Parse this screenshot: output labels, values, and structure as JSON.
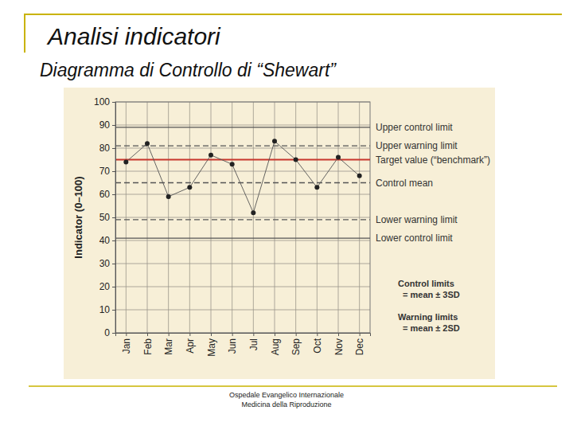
{
  "chart_data": {
    "type": "line",
    "title": "Analisi indicatori",
    "subtitle": "Diagramma di Controllo di “Shewart”",
    "y_label": "Indicator (0–100)",
    "categories": [
      "Jan",
      "Feb",
      "Mar",
      "Apr",
      "May",
      "Jun",
      "Jul",
      "Aug",
      "Sep",
      "Oct",
      "Nov",
      "Dec"
    ],
    "values": [
      74,
      82,
      59,
      63,
      77,
      73,
      52,
      83,
      75,
      63,
      76,
      68
    ],
    "color": "#555555",
    "marker": "circle",
    "ylim": [
      0,
      100
    ],
    "yticks": [
      0,
      10,
      20,
      30,
      40,
      50,
      60,
      70,
      80,
      90,
      100
    ],
    "grid": true,
    "reference_lines": [
      {
        "label": "Upper control limit",
        "value": 89,
        "color": "#555555",
        "line_style": "solid"
      },
      {
        "label": "Upper warning limit",
        "value": 81,
        "color": "#555555",
        "line_style": "dashed"
      },
      {
        "label": "Target value (“benchmark”)",
        "value": 75,
        "color": "#c8372d",
        "line_style": "solid"
      },
      {
        "label": "Control mean",
        "value": 65,
        "color": "#555555",
        "line_style": "dashed"
      },
      {
        "label": "Lower warning limit",
        "value": 49,
        "color": "#555555",
        "line_style": "dashed"
      },
      {
        "label": "Lower control limit",
        "value": 41,
        "color": "#555555",
        "line_style": "solid"
      }
    ],
    "annotations": [
      {
        "title": "Control limits",
        "text": "= mean ± 3SD"
      },
      {
        "title": "Warning limits",
        "text": "= mean ± 2SD"
      }
    ]
  },
  "footer": {
    "lines": [
      "Ospedale Evangelico Internazionale",
      "Medicina della Riproduzione"
    ]
  }
}
